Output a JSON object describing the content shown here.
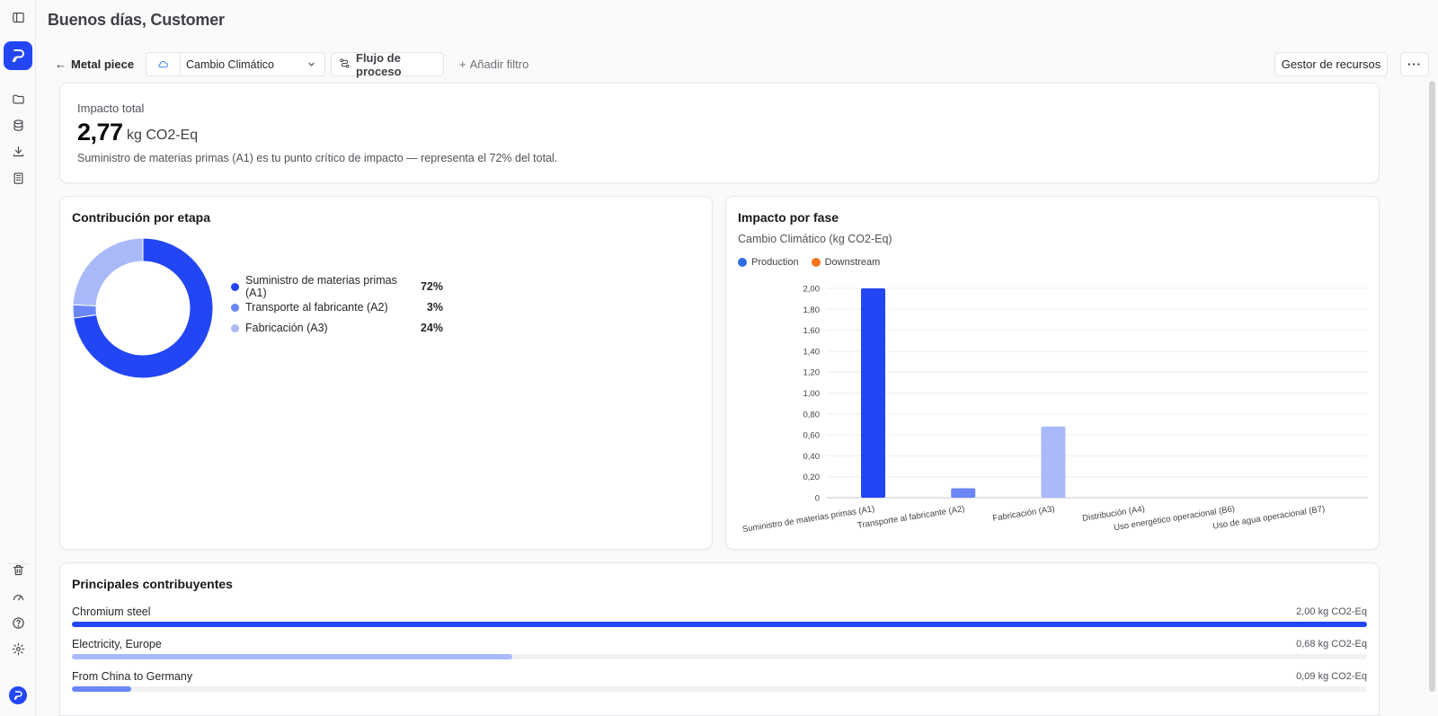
{
  "header": {
    "greeting": "Buenos días, Customer"
  },
  "toolbar": {
    "back_label": "Metal piece",
    "impact_category": "Cambio Climático",
    "flow_label": "Flujo de proceso",
    "add_filter_label": "Añadir filtro",
    "resources_label": "Gestor de recursos",
    "more_label": "···"
  },
  "total_card": {
    "label": "Impacto total",
    "value": "2,77",
    "unit": "kg CO2-Eq",
    "note": "Suministro de materias primas (A1) es tu punto crítico de impacto — representa el 72% del total."
  },
  "stage_card": {
    "title": "Contribución por etapa",
    "items": [
      {
        "name": "Suministro de materias primas (A1)",
        "pct": "72%",
        "value": 72,
        "color": "#2346f5"
      },
      {
        "name": "Transporte al fabricante (A2)",
        "pct": "3%",
        "value": 3,
        "color": "#6a86f7"
      },
      {
        "name": "Fabricación (A3)",
        "pct": "24%",
        "value": 24,
        "color": "#a9b9fa"
      }
    ]
  },
  "phase_card": {
    "title": "Impacto por fase",
    "subtitle": "Cambio Climático (kg CO2-Eq)",
    "legend": [
      {
        "name": "Production",
        "color": "#2f6ee8"
      },
      {
        "name": "Downstream",
        "color": "#f5741f"
      }
    ]
  },
  "chart_data": {
    "type": "bar",
    "ylabel": "Cambio Climático (kg CO2-Eq)",
    "ylim": [
      0,
      2.0
    ],
    "yticks": [
      "0",
      "0,20",
      "0,40",
      "0,60",
      "0,80",
      "1,00",
      "1,20",
      "1,40",
      "1,60",
      "1,80",
      "2,00"
    ],
    "grid": true,
    "legend_position": "top-left",
    "categories": [
      "Suministro de materias primas (A1)",
      "Transporte al fabricante (A2)",
      "Fabricación (A3)",
      "Distribución (A4)",
      "Uso energético operacional (B6)",
      "Uso de agua operacional (B7)"
    ],
    "values": [
      2.0,
      0.09,
      0.68,
      0.0,
      0.0,
      0.0
    ],
    "bar_colors": [
      "#2346f5",
      "#6a86f7",
      "#a9b9fa",
      "#f5741f",
      "#f5741f",
      "#f5741f"
    ]
  },
  "contributors": {
    "title": "Principales contribuyentes",
    "items": [
      {
        "name": "Chromium steel",
        "value_label": "2,00 kg CO2-Eq",
        "fraction": 1.0,
        "color": "#2346f5"
      },
      {
        "name": "Electricity, Europe",
        "value_label": "0,68 kg CO2-Eq",
        "fraction": 0.34,
        "color": "#a9b9fa"
      },
      {
        "name": "From China to Germany",
        "value_label": "0,09 kg CO2-Eq",
        "fraction": 0.046,
        "color": "#6a86f7"
      }
    ]
  }
}
